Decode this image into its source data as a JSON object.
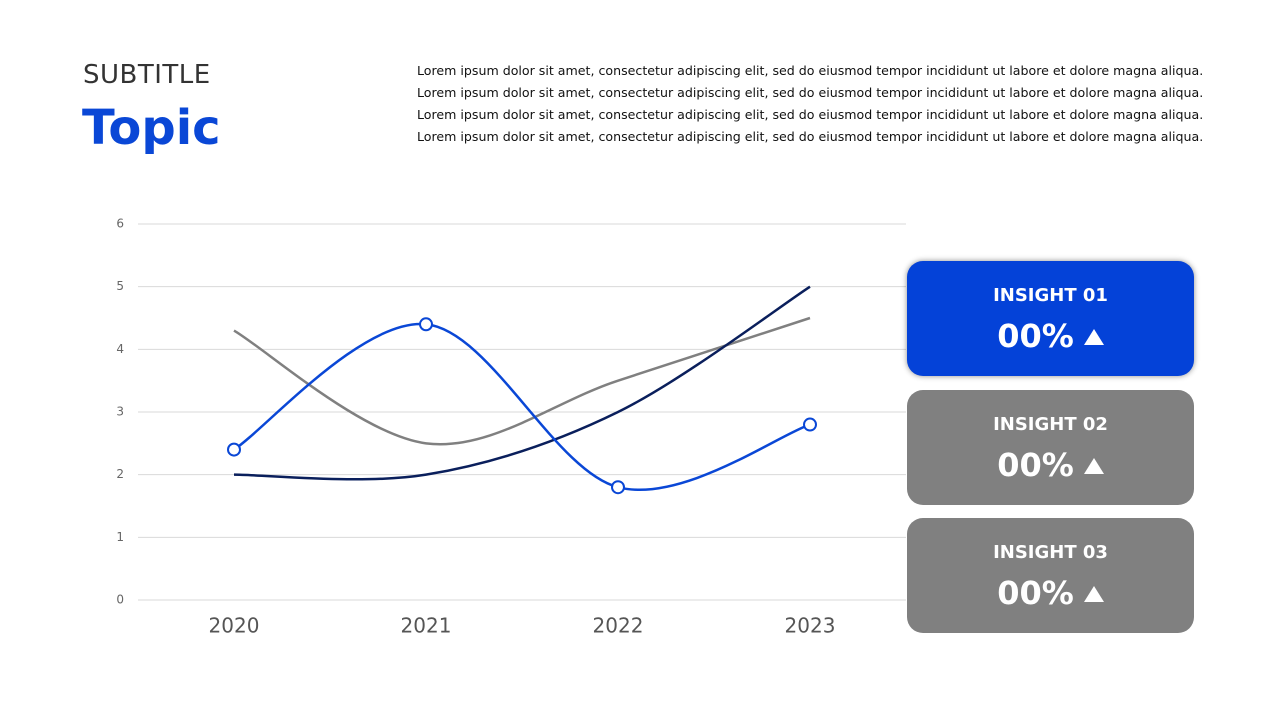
{
  "header": {
    "subtitle": "SUBTITLE",
    "title": "Topic",
    "body": "Lorem ipsum dolor sit amet, consectetur adipiscing elit, sed do eiusmod tempor incididunt ut labore et dolore magna aliqua. Lorem ipsum dolor sit amet, consectetur adipiscing elit, sed do eiusmod tempor incididunt ut labore et dolore magna aliqua. Lorem ipsum dolor sit amet, consectetur adipiscing elit, sed do eiusmod tempor incididunt ut labore et dolore magna aliqua. Lorem ipsum dolor sit amet, consectetur adipiscing elit, sed do eiusmod tempor incididunt ut labore et dolore magna aliqua."
  },
  "chart_data": {
    "type": "line",
    "categories": [
      "2020",
      "2021",
      "2022",
      "2023"
    ],
    "series": [
      {
        "color": "#808080",
        "values": [
          4.3,
          2.5,
          3.5,
          4.5
        ],
        "markers": false
      },
      {
        "color": "#0a1f5c",
        "values": [
          2,
          2,
          3,
          5
        ],
        "markers": false
      },
      {
        "color": "#0a47d6",
        "values": [
          2.4,
          4.4,
          1.8,
          2.8
        ],
        "markers": true
      }
    ],
    "ylim": [
      0,
      6
    ],
    "yticks": [
      0,
      1,
      2,
      3,
      4,
      5,
      6
    ],
    "grid": true,
    "smooth": true
  },
  "insights": [
    {
      "label": "INSIGHT 01",
      "value": "00%",
      "color": "#0442d8"
    },
    {
      "label": "INSIGHT 02",
      "value": "00%",
      "color": "#808080"
    },
    {
      "label": "INSIGHT 03",
      "value": "00%",
      "color": "#808080"
    }
  ]
}
